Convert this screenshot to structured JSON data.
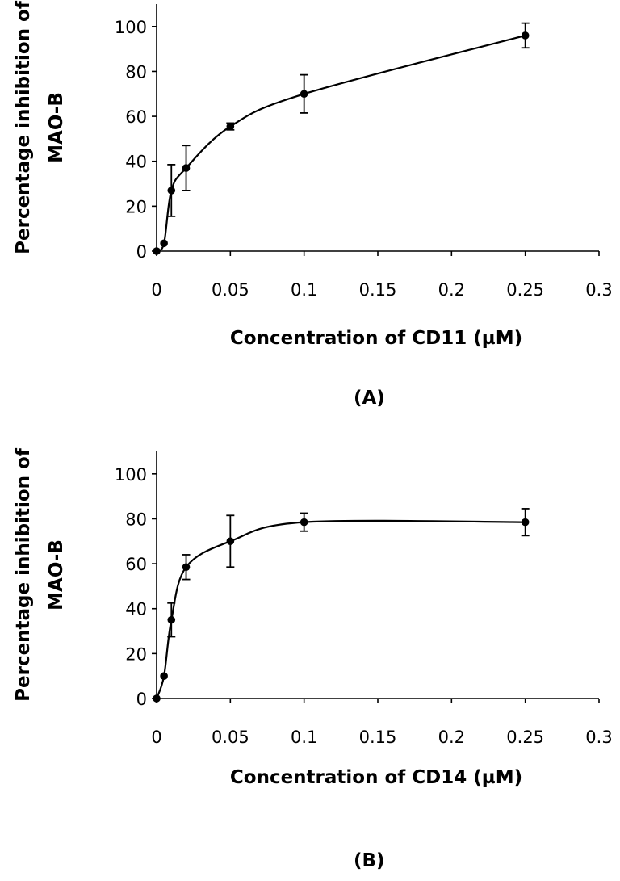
{
  "chart_data": [
    {
      "type": "line",
      "panel_label": "(A)",
      "xlabel": "Concentration of CD11 (µM)",
      "ylabel_line1": "Percentage inhibition of",
      "ylabel_line2": "MAO-B",
      "xlim": [
        0,
        0.3
      ],
      "ylim": [
        0,
        110
      ],
      "x_ticks": [
        0,
        0.05,
        0.1,
        0.15,
        0.2,
        0.25,
        0.3
      ],
      "x_tick_labels": [
        "0",
        "0.05",
        "0.1",
        "0.15",
        "0.2",
        "0.25",
        "0.3"
      ],
      "y_ticks": [
        0,
        20,
        40,
        60,
        80,
        100
      ],
      "y_tick_labels": [
        "0",
        "20",
        "40",
        "60",
        "80",
        "100"
      ],
      "grid": false,
      "series": [
        {
          "x": [
            0,
            0.005,
            0.01,
            0.02,
            0.05,
            0.1,
            0.25
          ],
          "y": [
            0,
            3.5,
            27,
            37,
            55.5,
            70,
            96
          ],
          "err": [
            0,
            0,
            11.5,
            10,
            1.5,
            8.5,
            5.5
          ]
        }
      ]
    },
    {
      "type": "line",
      "panel_label": "(B)",
      "xlabel": "Concentration of CD14 (µM)",
      "ylabel_line1": "Percentage inhibition of",
      "ylabel_line2": "MAO-B",
      "xlim": [
        0,
        0.3
      ],
      "ylim": [
        0,
        110
      ],
      "x_ticks": [
        0,
        0.05,
        0.1,
        0.15,
        0.2,
        0.25,
        0.3
      ],
      "x_tick_labels": [
        "0",
        "0.05",
        "0.1",
        "0.15",
        "0.2",
        "0.25",
        "0.3"
      ],
      "y_ticks": [
        0,
        20,
        40,
        60,
        80,
        100
      ],
      "y_tick_labels": [
        "0",
        "20",
        "40",
        "60",
        "80",
        "100"
      ],
      "grid": false,
      "series": [
        {
          "x": [
            0,
            0.005,
            0.01,
            0.02,
            0.05,
            0.1,
            0.25
          ],
          "y": [
            0,
            10,
            35,
            58.5,
            70,
            78.5,
            78.5
          ],
          "err": [
            0,
            0,
            7.5,
            5.5,
            11.5,
            4,
            6
          ]
        }
      ]
    }
  ]
}
